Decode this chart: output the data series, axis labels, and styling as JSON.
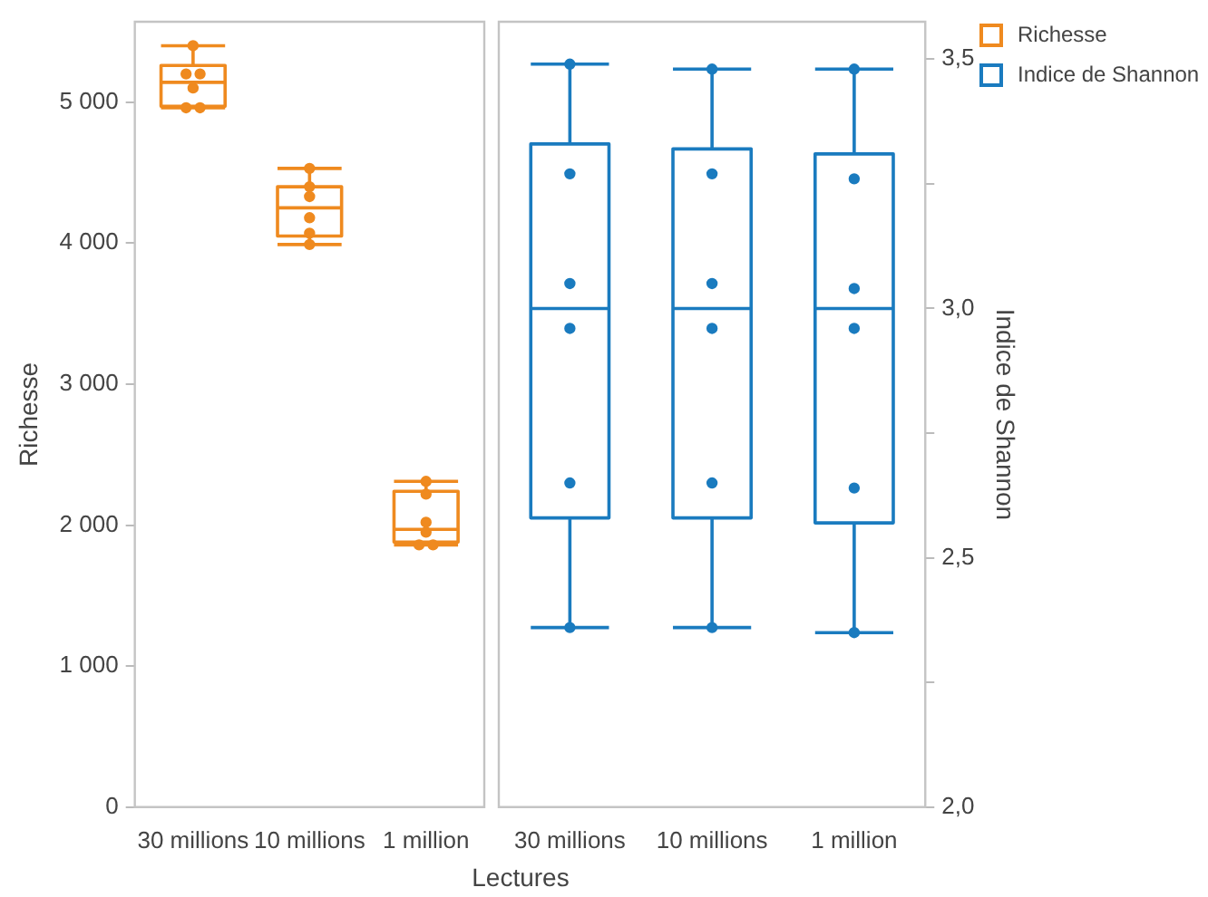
{
  "chart_data": [
    {
      "type": "box",
      "xlabel": "Lectures",
      "ylabel": "Richesse",
      "legend": "top right",
      "categories": [
        "30 millions",
        "10 millions",
        "1 million"
      ],
      "ylim": [
        0,
        5570
      ],
      "yticks": [
        {
          "value": 0,
          "label": "0"
        },
        {
          "value": 1000,
          "label": "1 000"
        },
        {
          "value": 2000,
          "label": "2 000"
        },
        {
          "value": 3000,
          "label": "3 000"
        },
        {
          "value": 4000,
          "label": "4 000"
        },
        {
          "value": 5000,
          "label": "5 000"
        }
      ],
      "series": [
        {
          "name": "Richesse",
          "color": "#ef8a1f",
          "boxes": [
            {
              "low": 4960,
              "q1": 4970,
              "median": 5140,
              "q3": 5260,
              "high": 5400
            },
            {
              "low": 3990,
              "q1": 4050,
              "median": 4250,
              "q3": 4400,
              "high": 4530
            },
            {
              "low": 1860,
              "q1": 1880,
              "median": 1970,
              "q3": 2240,
              "high": 2310
            }
          ]
        },
        {
          "type": "scatter",
          "marker": "circle",
          "color": "#ef8a1f",
          "x": [
            "30 millions",
            "30 millions",
            "30 millions",
            "30 millions",
            "30 millions",
            "30 millions",
            "10 millions",
            "10 millions",
            "10 millions",
            "10 millions",
            "10 millions",
            "10 millions",
            "1 million",
            "1 million",
            "1 million",
            "1 million",
            "1 million",
            "1 million"
          ],
          "values": [
            5400,
            5200,
            5200,
            5100,
            4960,
            4960,
            4530,
            4400,
            4330,
            4180,
            4070,
            3990,
            2310,
            2220,
            2020,
            1950,
            1860,
            1860
          ]
        }
      ]
    },
    {
      "type": "box",
      "y2label": "Indice de Shannon",
      "legend": "top right",
      "categories": [
        "30 millions",
        "10 millions",
        "1 million"
      ],
      "y2lim": [
        2.0,
        3.575
      ],
      "y2ticks": [
        {
          "value": 2.0,
          "label": "2,0"
        },
        {
          "value": 2.25,
          "label": null
        },
        {
          "value": 2.5,
          "label": "2,5"
        },
        {
          "value": 2.75,
          "label": null
        },
        {
          "value": 3.0,
          "label": "3,0"
        },
        {
          "value": 3.25,
          "label": null
        },
        {
          "value": 3.5,
          "label": "3,5"
        }
      ],
      "series": [
        {
          "name": "Indice de Shannon",
          "color": "#1a7bbf",
          "axis": "y2",
          "boxes": [
            {
              "low": 2.36,
              "q1": 2.58,
              "median": 3.0,
              "q3": 3.33,
              "high": 3.49
            },
            {
              "low": 2.36,
              "q1": 2.58,
              "median": 3.0,
              "q3": 3.32,
              "high": 3.48
            },
            {
              "low": 2.35,
              "q1": 2.57,
              "median": 3.0,
              "q3": 3.31,
              "high": 3.48
            }
          ]
        },
        {
          "type": "scatter",
          "marker": "circle",
          "color": "#1a7bbf",
          "axis": "y2",
          "x": [
            "30 millions",
            "30 millions",
            "30 millions",
            "30 millions",
            "30 millions",
            "30 millions",
            "10 millions",
            "10 millions",
            "10 millions",
            "10 millions",
            "10 millions",
            "10 millions",
            "1 million",
            "1 million",
            "1 million",
            "1 million",
            "1 million",
            "1 million"
          ],
          "values": [
            3.49,
            3.27,
            3.05,
            2.96,
            2.65,
            2.36,
            3.48,
            3.27,
            3.05,
            2.96,
            2.65,
            2.36,
            3.48,
            3.26,
            3.04,
            2.96,
            2.64,
            2.35
          ]
        }
      ]
    }
  ]
}
